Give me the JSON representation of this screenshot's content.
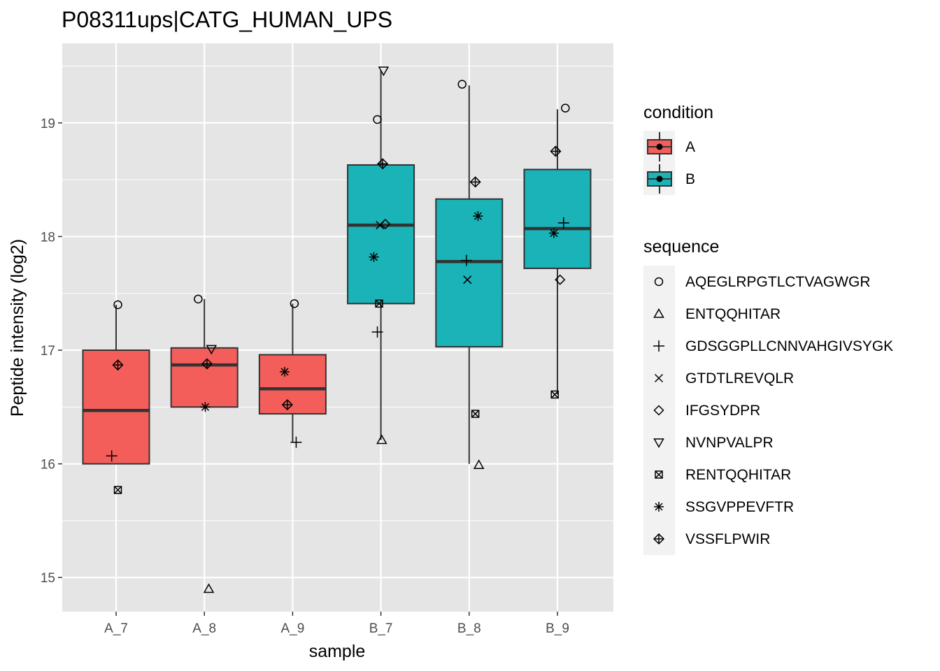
{
  "chart_data": {
    "type": "boxplot",
    "title": "P08311ups|CATG_HUMAN_UPS",
    "xlabel": "sample",
    "ylabel": "Peptide intensity (log2)",
    "categories": [
      "A_7",
      "A_8",
      "A_9",
      "B_7",
      "B_8",
      "B_9"
    ],
    "yticks": [
      "15",
      "16",
      "17",
      "18",
      "19"
    ],
    "ylim": [
      14.7,
      19.7
    ],
    "grid": true,
    "colors": {
      "A": "#f35e5a",
      "B": "#19b3b8",
      "panel": "#e5e5e5"
    },
    "boxes": [
      {
        "sample": "A_7",
        "condition": "A",
        "whisker_low": 16.0,
        "q1": 16.0,
        "median": 16.47,
        "q3": 17.0,
        "whisker_high": 17.4
      },
      {
        "sample": "A_8",
        "condition": "A",
        "whisker_low": 16.5,
        "q1": 16.5,
        "median": 16.87,
        "q3": 17.02,
        "whisker_high": 17.45
      },
      {
        "sample": "A_9",
        "condition": "A",
        "whisker_low": 16.19,
        "q1": 16.44,
        "median": 16.66,
        "q3": 16.96,
        "whisker_high": 17.41
      },
      {
        "sample": "B_7",
        "condition": "B",
        "whisker_low": 16.21,
        "q1": 17.41,
        "median": 18.1,
        "q3": 18.63,
        "whisker_high": 19.46
      },
      {
        "sample": "B_8",
        "condition": "B",
        "whisker_low": 16.0,
        "q1": 17.03,
        "median": 17.78,
        "q3": 18.33,
        "whisker_high": 19.33
      },
      {
        "sample": "B_9",
        "condition": "B",
        "whisker_low": 16.61,
        "q1": 17.72,
        "median": 18.07,
        "q3": 18.59,
        "whisker_high": 19.12
      }
    ],
    "points": [
      {
        "sample": "A_7",
        "sequence": "AQEGLRPGTLCTVAGWGR",
        "y": 17.4,
        "jitter": 0.02
      },
      {
        "sample": "A_7",
        "sequence": "VSSFLPWIR",
        "y": 16.87,
        "jitter": 0.02
      },
      {
        "sample": "A_7",
        "sequence": "GDSGGPLLCNNVAHGIVSYGK",
        "y": 16.07,
        "jitter": -0.05
      },
      {
        "sample": "A_7",
        "sequence": "RENTQQHITAR",
        "y": 15.77,
        "jitter": 0.02
      },
      {
        "sample": "A_8",
        "sequence": "AQEGLRPGTLCTVAGWGR",
        "y": 17.45,
        "jitter": -0.07
      },
      {
        "sample": "A_8",
        "sequence": "NVNPVALPR",
        "y": 17.01,
        "jitter": 0.08
      },
      {
        "sample": "A_8",
        "sequence": "VSSFLPWIR",
        "y": 16.88,
        "jitter": 0.03
      },
      {
        "sample": "A_8",
        "sequence": "SSGVPPEVFTR",
        "y": 16.5,
        "jitter": 0.01
      },
      {
        "sample": "A_8",
        "sequence": "ENTQQHITAR",
        "y": 14.9,
        "jitter": 0.05
      },
      {
        "sample": "A_9",
        "sequence": "AQEGLRPGTLCTVAGWGR",
        "y": 17.41,
        "jitter": 0.02
      },
      {
        "sample": "A_9",
        "sequence": "SSGVPPEVFTR",
        "y": 16.81,
        "jitter": -0.09
      },
      {
        "sample": "A_9",
        "sequence": "VSSFLPWIR",
        "y": 16.52,
        "jitter": -0.06
      },
      {
        "sample": "A_9",
        "sequence": "GDSGGPLLCNNVAHGIVSYGK",
        "y": 16.19,
        "jitter": 0.04
      },
      {
        "sample": "B_7",
        "sequence": "NVNPVALPR",
        "y": 19.46,
        "jitter": 0.03
      },
      {
        "sample": "B_7",
        "sequence": "AQEGLRPGTLCTVAGWGR",
        "y": 19.03,
        "jitter": -0.04
      },
      {
        "sample": "B_7",
        "sequence": "VSSFLPWIR",
        "y": 18.64,
        "jitter": 0.02
      },
      {
        "sample": "B_7",
        "sequence": "GTDTLREVQLR",
        "y": 18.1,
        "jitter": -0.01
      },
      {
        "sample": "B_7",
        "sequence": "IFGSYDPR",
        "y": 18.11,
        "jitter": 0.05
      },
      {
        "sample": "B_7",
        "sequence": "SSGVPPEVFTR",
        "y": 17.82,
        "jitter": -0.08
      },
      {
        "sample": "B_7",
        "sequence": "RENTQQHITAR",
        "y": 17.41,
        "jitter": -0.02
      },
      {
        "sample": "B_7",
        "sequence": "GDSGGPLLCNNVAHGIVSYGK",
        "y": 17.16,
        "jitter": -0.04
      },
      {
        "sample": "B_7",
        "sequence": "ENTQQHITAR",
        "y": 16.21,
        "jitter": 0.01
      },
      {
        "sample": "B_8",
        "sequence": "AQEGLRPGTLCTVAGWGR",
        "y": 19.34,
        "jitter": -0.08
      },
      {
        "sample": "B_8",
        "sequence": "VSSFLPWIR",
        "y": 18.48,
        "jitter": 0.07
      },
      {
        "sample": "B_8",
        "sequence": "SSGVPPEVFTR",
        "y": 18.18,
        "jitter": 0.1
      },
      {
        "sample": "B_8",
        "sequence": "GDSGGPLLCNNVAHGIVSYGK",
        "y": 17.79,
        "jitter": -0.03
      },
      {
        "sample": "B_8",
        "sequence": "GTDTLREVQLR",
        "y": 17.62,
        "jitter": -0.02
      },
      {
        "sample": "B_8",
        "sequence": "RENTQQHITAR",
        "y": 16.44,
        "jitter": 0.07
      },
      {
        "sample": "B_8",
        "sequence": "ENTQQHITAR",
        "y": 15.99,
        "jitter": 0.11
      },
      {
        "sample": "B_9",
        "sequence": "AQEGLRPGTLCTVAGWGR",
        "y": 19.13,
        "jitter": 0.09
      },
      {
        "sample": "B_9",
        "sequence": "VSSFLPWIR",
        "y": 18.75,
        "jitter": -0.02
      },
      {
        "sample": "B_9",
        "sequence": "GDSGGPLLCNNVAHGIVSYGK",
        "y": 18.12,
        "jitter": 0.07
      },
      {
        "sample": "B_9",
        "sequence": "SSGVPPEVFTR",
        "y": 18.03,
        "jitter": -0.04
      },
      {
        "sample": "B_9",
        "sequence": "IFGSYDPR",
        "y": 17.62,
        "jitter": 0.03
      },
      {
        "sample": "B_9",
        "sequence": "RENTQQHITAR",
        "y": 16.61,
        "jitter": -0.03
      }
    ],
    "legend": {
      "placement": "right",
      "condition": {
        "title": "condition",
        "items": [
          {
            "label": "A",
            "color": "#f35e5a"
          },
          {
            "label": "B",
            "color": "#19b3b8"
          }
        ]
      },
      "sequence": {
        "title": "sequence",
        "items": [
          {
            "label": "AQEGLRPGTLCTVAGWGR",
            "shape": "circle"
          },
          {
            "label": "ENTQQHITAR",
            "shape": "triangle-up"
          },
          {
            "label": "GDSGGPLLCNNVAHGIVSYGK",
            "shape": "plus"
          },
          {
            "label": "GTDTLREVQLR",
            "shape": "cross"
          },
          {
            "label": "IFGSYDPR",
            "shape": "diamond"
          },
          {
            "label": "NVNPVALPR",
            "shape": "triangle-down"
          },
          {
            "label": "RENTQQHITAR",
            "shape": "square-cross"
          },
          {
            "label": "SSGVPPEVFTR",
            "shape": "asterisk"
          },
          {
            "label": "VSSFLPWIR",
            "shape": "diamond-plus"
          }
        ]
      }
    }
  }
}
